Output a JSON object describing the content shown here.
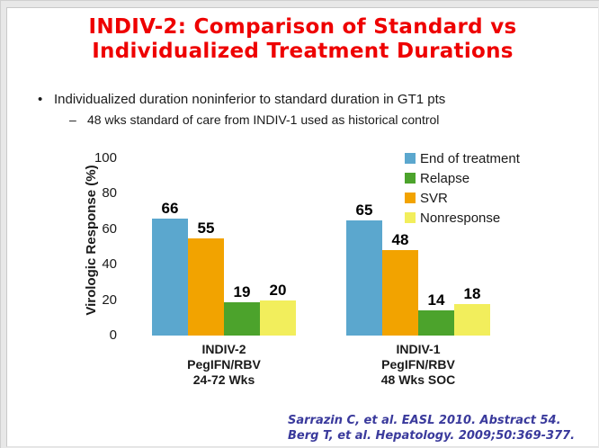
{
  "slide": {
    "title_line1": "INDIV-2: Comparison of Standard vs",
    "title_line2": "Individualized Treatment Durations",
    "title_color": "#ee0000",
    "bullets": [
      {
        "marker": "•",
        "text": "Individualized duration noninferior to standard duration in GT1 pts"
      },
      {
        "marker": "–",
        "text": "48 wks standard of care from INDIV-1 used as historical control"
      }
    ],
    "citation_line1": "Sarrazin C, et al. EASL 2010. Abstract 54.",
    "citation_line2": "Berg T, et al. Hepatology. 2009;50:369-377.",
    "citation_color": "#3a3a9c"
  },
  "chart_data": {
    "type": "bar",
    "title": "",
    "xlabel": "",
    "ylabel": "Virologic Response (%)",
    "ylim": [
      0,
      100
    ],
    "yticks": [
      0,
      20,
      40,
      60,
      80,
      100
    ],
    "grid": false,
    "legend_position": "top-right",
    "legend": [
      {
        "label": "End of treatment",
        "color": "#5ba7ce"
      },
      {
        "label": "Relapse",
        "color": "#4ca32c"
      },
      {
        "label": "SVR",
        "color": "#f2a300"
      },
      {
        "label": "Nonresponse",
        "color": "#f2ee5c"
      }
    ],
    "bar_order": [
      "End of treatment",
      "SVR",
      "Relapse",
      "Nonresponse"
    ],
    "groups": [
      {
        "label_lines": [
          "INDIV-2",
          "PegIFN/RBV",
          "24-72 Wks"
        ],
        "values": {
          "End of treatment": 66,
          "SVR": 55,
          "Relapse": 19,
          "Nonresponse": 20
        }
      },
      {
        "label_lines": [
          "INDIV-1",
          "PegIFN/RBV",
          "48 Wks SOC"
        ],
        "values": {
          "End of treatment": 65,
          "SVR": 48,
          "Relapse": 14,
          "Nonresponse": 18
        }
      }
    ]
  }
}
